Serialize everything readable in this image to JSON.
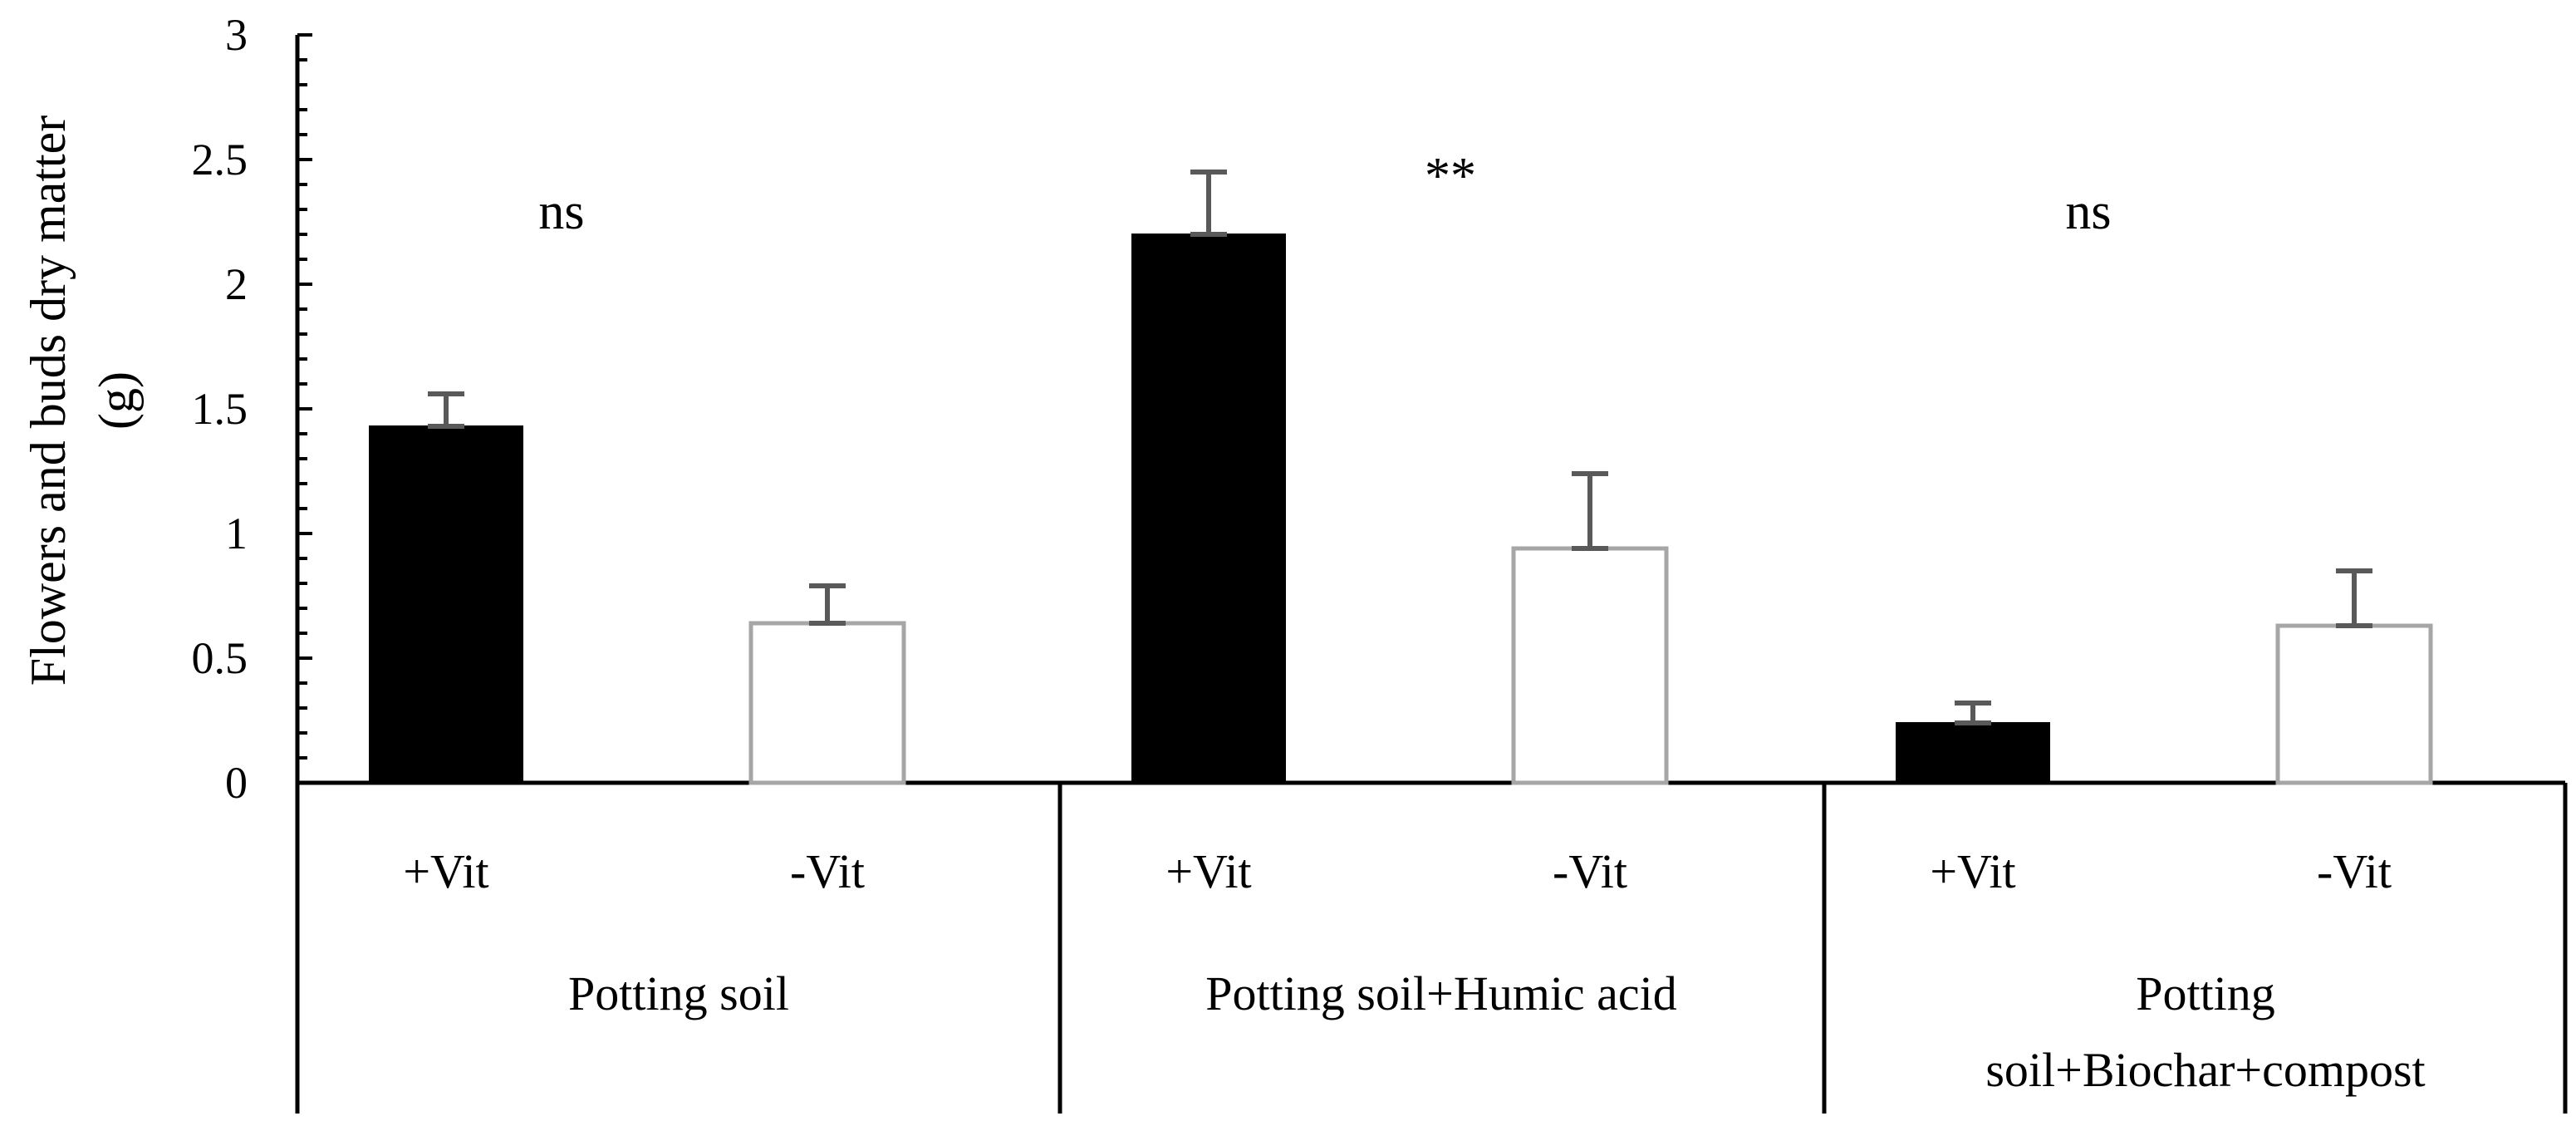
{
  "chart_data": {
    "type": "bar",
    "ylabel": [
      "Flowers and buds  dry matter",
      "(g)"
    ],
    "ylim": [
      0,
      3
    ],
    "yticks": [
      "0",
      "0.5",
      "1",
      "1.5",
      "2",
      "2.5",
      "3"
    ],
    "grid": false,
    "groups": [
      {
        "label": [
          "Potting soil"
        ],
        "significance": "ns",
        "bars": [
          {
            "category": "+Vit",
            "value": 1.43,
            "error": 0.13
          },
          {
            "category": "-Vit",
            "value": 0.64,
            "error": 0.15
          }
        ]
      },
      {
        "label": [
          "Potting soil+Humic acid"
        ],
        "significance": "**",
        "bars": [
          {
            "category": "+Vit",
            "value": 2.2,
            "error": 0.25
          },
          {
            "category": "-Vit",
            "value": 0.94,
            "error": 0.3
          }
        ]
      },
      {
        "label": [
          "Potting",
          "soil+Biochar+compost"
        ],
        "significance": "ns",
        "bars": [
          {
            "category": "+Vit",
            "value": 0.24,
            "error": 0.08
          },
          {
            "category": "-Vit",
            "value": 0.63,
            "error": 0.22
          }
        ]
      }
    ],
    "colors": {
      "plus_vit_fill": "#000000",
      "minus_vit_fill": "#ffffff",
      "minus_vit_stroke": "#a6a6a6",
      "error_bar": "#595959",
      "axis": "#000000"
    }
  }
}
